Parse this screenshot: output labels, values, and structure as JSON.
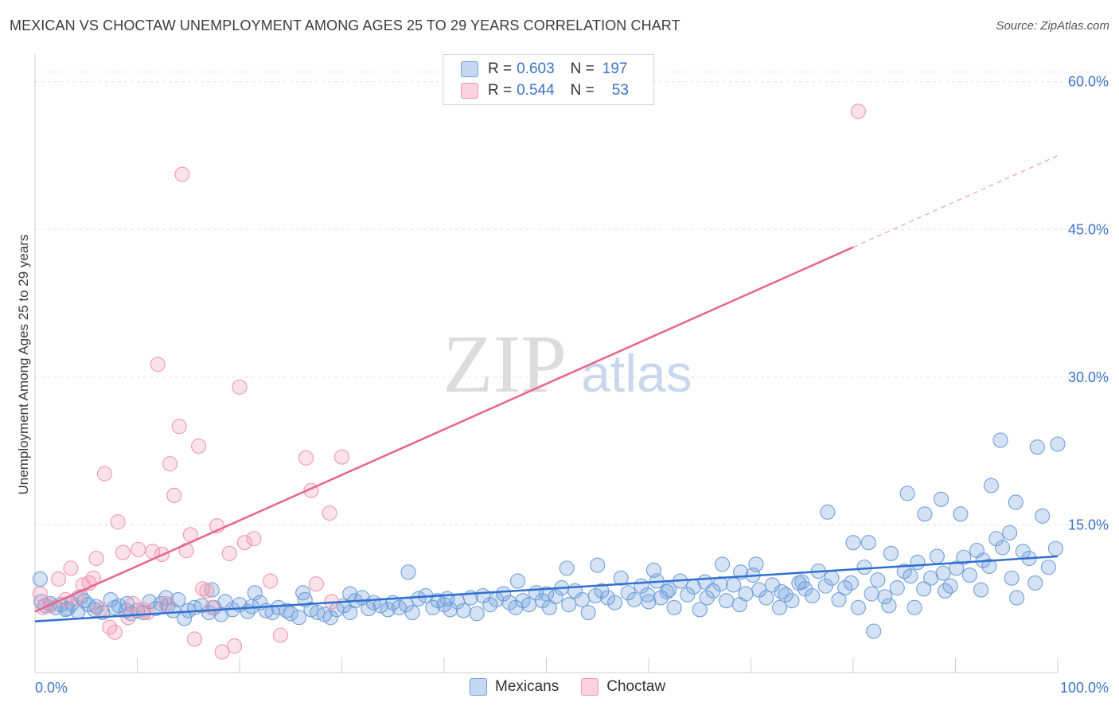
{
  "title": "MEXICAN VS CHOCTAW UNEMPLOYMENT AMONG AGES 25 TO 29 YEARS CORRELATION CHART",
  "source": "Source: ZipAtlas.com",
  "watermark": {
    "zip": "ZIP",
    "atlas": "atlas"
  },
  "legend": {
    "rows": [
      {
        "r_label": "R =",
        "r_value": "0.603",
        "n_label": "N =",
        "n_value": "197",
        "color": "#6fa0dc"
      },
      {
        "r_label": "R =",
        "r_value": "0.544",
        "n_label": "N =",
        "n_value": "53",
        "color": "#f097b1"
      }
    ]
  },
  "bottom_legend": [
    {
      "label": "Mexicans",
      "color": "#6fa0dc"
    },
    {
      "label": "Choctaw",
      "color": "#f097b1"
    }
  ],
  "chart_data": {
    "type": "scatter",
    "title": "MEXICAN VS CHOCTAW UNEMPLOYMENT AMONG AGES 25 TO 29 YEARS CORRELATION CHART",
    "xlabel": "",
    "ylabel": "Unemployment Among Ages 25 to 29 years",
    "xlim": [
      0,
      100
    ],
    "ylim": [
      0,
      62
    ],
    "x_tick_labels": [
      {
        "value": 0,
        "label": "0.0%"
      },
      {
        "value": 100,
        "label": "100.0%"
      }
    ],
    "y_tick_labels": [
      {
        "value": 15,
        "label": "15.0%"
      },
      {
        "value": 30,
        "label": "30.0%"
      },
      {
        "value": 45,
        "label": "45.0%"
      },
      {
        "value": 60,
        "label": "60.0%"
      }
    ],
    "x_minor_ticks": [
      0,
      10,
      20,
      30,
      40,
      50,
      60,
      70,
      80,
      90,
      100
    ],
    "grid": true,
    "legend_position": "top-center",
    "series": [
      {
        "name": "Mexicans",
        "color": "#6fa0dc",
        "trend": {
          "x": [
            0,
            100
          ],
          "y": [
            5.2,
            11.8
          ],
          "dashed_from": null
        },
        "points": [
          [
            0.5,
            9.5
          ],
          [
            0.6,
            7.2
          ],
          [
            1.0,
            6.8
          ],
          [
            1.5,
            7.0
          ],
          [
            2.0,
            6.6
          ],
          [
            2.5,
            6.9
          ],
          [
            3.2,
            6.5
          ],
          [
            3.6,
            7.0
          ],
          [
            4.2,
            6.2
          ],
          [
            4.8,
            7.3
          ],
          [
            5.2,
            6.9
          ],
          [
            5.8,
            6.4
          ],
          [
            6.0,
            6.7
          ],
          [
            6.6,
            6.1
          ],
          [
            7.4,
            7.4
          ],
          [
            7.8,
            6.6
          ],
          [
            8.2,
            6.8
          ],
          [
            8.9,
            6.3
          ],
          [
            9.4,
            6.0
          ],
          [
            10.0,
            6.3
          ],
          [
            10.6,
            6.1
          ],
          [
            11.2,
            7.2
          ],
          [
            11.8,
            6.5
          ],
          [
            12.3,
            7.0
          ],
          [
            13.0,
            6.8
          ],
          [
            13.5,
            6.3
          ],
          [
            14.0,
            7.4
          ],
          [
            14.6,
            5.5
          ],
          [
            15.0,
            6.3
          ],
          [
            15.6,
            6.6
          ],
          [
            16.3,
            6.8
          ],
          [
            17.0,
            6.1
          ],
          [
            17.5,
            6.6
          ],
          [
            18.2,
            5.9
          ],
          [
            18.6,
            7.2
          ],
          [
            19.3,
            6.4
          ],
          [
            20.0,
            6.9
          ],
          [
            20.8,
            6.2
          ],
          [
            21.2,
            6.7
          ],
          [
            22.0,
            7.1
          ],
          [
            22.6,
            6.3
          ],
          [
            23.2,
            6.1
          ],
          [
            23.8,
            6.6
          ],
          [
            24.6,
            6.3
          ],
          [
            25.0,
            6.0
          ],
          [
            25.8,
            5.6
          ],
          [
            26.4,
            7.4
          ],
          [
            27.0,
            6.4
          ],
          [
            27.6,
            6.1
          ],
          [
            28.3,
            5.9
          ],
          [
            28.9,
            5.6
          ],
          [
            29.5,
            6.4
          ],
          [
            30.2,
            6.8
          ],
          [
            30.8,
            6.1
          ],
          [
            31.3,
            7.3
          ],
          [
            32.0,
            7.6
          ],
          [
            32.6,
            6.5
          ],
          [
            33.1,
            7.1
          ],
          [
            33.8,
            6.8
          ],
          [
            34.5,
            6.4
          ],
          [
            35.0,
            7.1
          ],
          [
            35.6,
            6.6
          ],
          [
            36.3,
            6.9
          ],
          [
            36.9,
            6.1
          ],
          [
            37.5,
            7.5
          ],
          [
            38.2,
            7.8
          ],
          [
            38.9,
            6.6
          ],
          [
            39.4,
            7.3
          ],
          [
            40.0,
            6.9
          ],
          [
            40.6,
            6.4
          ],
          [
            41.3,
            7.2
          ],
          [
            41.9,
            6.3
          ],
          [
            42.6,
            7.6
          ],
          [
            43.2,
            6.0
          ],
          [
            43.8,
            7.8
          ],
          [
            44.5,
            6.9
          ],
          [
            45.1,
            7.4
          ],
          [
            45.8,
            8.0
          ],
          [
            46.4,
            7.1
          ],
          [
            47.0,
            6.6
          ],
          [
            47.7,
            7.3
          ],
          [
            48.3,
            6.9
          ],
          [
            49.0,
            8.1
          ],
          [
            49.6,
            7.3
          ],
          [
            50.3,
            6.6
          ],
          [
            50.9,
            7.7
          ],
          [
            51.5,
            8.6
          ],
          [
            52.2,
            6.9
          ],
          [
            52.8,
            8.3
          ],
          [
            53.5,
            7.4
          ],
          [
            54.1,
            6.1
          ],
          [
            54.8,
            7.8
          ],
          [
            55.4,
            8.3
          ],
          [
            56.0,
            7.6
          ],
          [
            56.7,
            7.1
          ],
          [
            57.3,
            9.6
          ],
          [
            58.0,
            8.1
          ],
          [
            58.6,
            7.4
          ],
          [
            59.3,
            8.8
          ],
          [
            59.9,
            7.9
          ],
          [
            60.5,
            10.4
          ],
          [
            61.2,
            7.6
          ],
          [
            61.8,
            8.2
          ],
          [
            62.5,
            6.6
          ],
          [
            63.1,
            9.3
          ],
          [
            63.8,
            7.9
          ],
          [
            64.4,
            8.7
          ],
          [
            65.0,
            6.4
          ],
          [
            65.7,
            7.6
          ],
          [
            66.3,
            8.3
          ],
          [
            67.0,
            9.0
          ],
          [
            67.6,
            7.3
          ],
          [
            68.3,
            8.9
          ],
          [
            68.9,
            6.9
          ],
          [
            69.5,
            8.0
          ],
          [
            70.2,
            9.9
          ],
          [
            70.8,
            8.4
          ],
          [
            71.5,
            7.6
          ],
          [
            72.1,
            8.9
          ],
          [
            72.8,
            6.6
          ],
          [
            73.4,
            7.9
          ],
          [
            74.0,
            7.3
          ],
          [
            74.7,
            9.1
          ],
          [
            75.3,
            8.5
          ],
          [
            76.0,
            7.8
          ],
          [
            76.6,
            10.3
          ],
          [
            77.3,
            8.8
          ],
          [
            77.9,
            9.6
          ],
          [
            78.6,
            7.4
          ],
          [
            79.2,
            8.6
          ],
          [
            79.8,
            9.1
          ],
          [
            80.5,
            6.6
          ],
          [
            81.1,
            10.7
          ],
          [
            81.8,
            8.0
          ],
          [
            82.4,
            9.4
          ],
          [
            83.1,
            7.7
          ],
          [
            83.7,
            12.1
          ],
          [
            84.3,
            8.6
          ],
          [
            85.0,
            10.3
          ],
          [
            85.6,
            9.8
          ],
          [
            86.3,
            11.2
          ],
          [
            86.9,
            8.5
          ],
          [
            87.6,
            9.6
          ],
          [
            88.2,
            11.8
          ],
          [
            88.8,
            10.1
          ],
          [
            89.5,
            8.8
          ],
          [
            90.1,
            10.6
          ],
          [
            90.8,
            11.7
          ],
          [
            91.4,
            9.9
          ],
          [
            92.1,
            12.4
          ],
          [
            92.7,
            11.4
          ],
          [
            93.3,
            10.8
          ],
          [
            94.0,
            13.6
          ],
          [
            94.6,
            12.7
          ],
          [
            95.3,
            14.2
          ],
          [
            95.9,
            17.3
          ],
          [
            96.6,
            12.3
          ],
          [
            97.2,
            11.6
          ],
          [
            97.8,
            9.1
          ],
          [
            98.5,
            15.9
          ],
          [
            99.1,
            10.7
          ],
          [
            99.8,
            12.6
          ],
          [
            98.0,
            22.9
          ],
          [
            94.4,
            23.6
          ],
          [
            100.0,
            23.2
          ],
          [
            93.5,
            19.0
          ],
          [
            90.5,
            16.1
          ],
          [
            88.6,
            17.6
          ],
          [
            85.3,
            18.2
          ],
          [
            87.0,
            16.1
          ],
          [
            77.5,
            16.3
          ],
          [
            81.5,
            13.2
          ],
          [
            80.0,
            13.2
          ],
          [
            82.0,
            4.2
          ],
          [
            70.5,
            11.0
          ],
          [
            69.0,
            10.2
          ],
          [
            67.2,
            11.0
          ],
          [
            60.8,
            9.3
          ],
          [
            55.0,
            10.9
          ],
          [
            52.0,
            10.6
          ],
          [
            47.2,
            9.3
          ],
          [
            36.5,
            10.2
          ],
          [
            30.8,
            8.0
          ],
          [
            26.2,
            8.1
          ],
          [
            21.5,
            8.1
          ],
          [
            17.3,
            8.4
          ],
          [
            12.8,
            7.6
          ],
          [
            9.0,
            7.0
          ],
          [
            4.5,
            7.7
          ],
          [
            3.0,
            6.4
          ],
          [
            40.3,
            7.5
          ],
          [
            50.0,
            8.0
          ],
          [
            60.0,
            7.2
          ],
          [
            62.0,
            8.4
          ],
          [
            65.5,
            9.2
          ],
          [
            83.5,
            6.8
          ],
          [
            86.0,
            6.6
          ],
          [
            95.5,
            9.6
          ],
          [
            96.0,
            7.6
          ],
          [
            92.5,
            8.4
          ],
          [
            89.0,
            8.3
          ],
          [
            73.0,
            8.2
          ],
          [
            75.0,
            9.2
          ]
        ]
      },
      {
        "name": "Choctaw",
        "color": "#f097b1",
        "trend": {
          "x": [
            0,
            80,
            100
          ],
          "y": [
            6.2,
            43.2,
            52.5
          ],
          "dashed_from": 80
        },
        "points": [
          [
            0.5,
            8.0
          ],
          [
            0.8,
            6.6
          ],
          [
            1.5,
            6.8
          ],
          [
            2.3,
            9.5
          ],
          [
            3.0,
            7.4
          ],
          [
            3.5,
            10.6
          ],
          [
            4.2,
            7.6
          ],
          [
            4.7,
            8.9
          ],
          [
            5.3,
            9.1
          ],
          [
            5.7,
            9.6
          ],
          [
            6.0,
            11.6
          ],
          [
            6.4,
            6.4
          ],
          [
            6.8,
            20.2
          ],
          [
            7.3,
            4.6
          ],
          [
            7.8,
            4.1
          ],
          [
            8.1,
            15.3
          ],
          [
            8.6,
            12.2
          ],
          [
            9.1,
            5.6
          ],
          [
            9.6,
            7.0
          ],
          [
            10.1,
            12.5
          ],
          [
            10.6,
            6.4
          ],
          [
            11.0,
            6.1
          ],
          [
            11.5,
            12.3
          ],
          [
            12.0,
            31.3
          ],
          [
            12.4,
            12.0
          ],
          [
            12.8,
            7.0
          ],
          [
            13.2,
            21.2
          ],
          [
            13.6,
            18.0
          ],
          [
            14.1,
            25.0
          ],
          [
            14.4,
            50.6
          ],
          [
            14.8,
            12.4
          ],
          [
            15.2,
            14.0
          ],
          [
            15.6,
            3.4
          ],
          [
            16.0,
            23.0
          ],
          [
            16.4,
            8.5
          ],
          [
            16.8,
            8.3
          ],
          [
            17.3,
            6.6
          ],
          [
            17.8,
            14.9
          ],
          [
            18.3,
            2.1
          ],
          [
            19.0,
            12.1
          ],
          [
            19.5,
            2.7
          ],
          [
            20.0,
            29.0
          ],
          [
            20.5,
            13.2
          ],
          [
            21.4,
            13.6
          ],
          [
            23.0,
            9.3
          ],
          [
            24.0,
            3.8
          ],
          [
            26.5,
            21.8
          ],
          [
            27.0,
            18.5
          ],
          [
            27.5,
            9.0
          ],
          [
            28.8,
            16.2
          ],
          [
            30.0,
            21.9
          ],
          [
            29.0,
            7.2
          ],
          [
            80.5,
            57.0
          ]
        ]
      }
    ]
  }
}
